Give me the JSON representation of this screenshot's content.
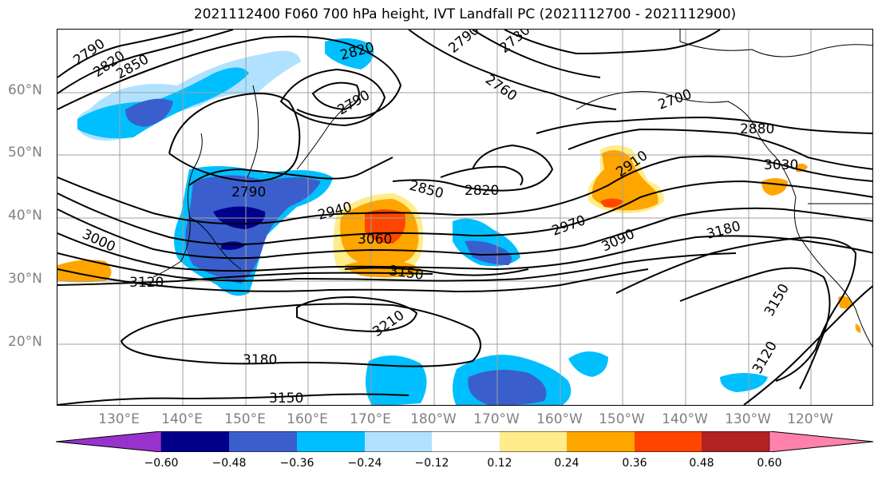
{
  "title": "2021112400 F060 700 hPa height, IVT Landfall PC (2021112700 - 2021112900)",
  "lat_labels": [
    "60°N",
    "50°N",
    "40°N",
    "30°N",
    "20°N"
  ],
  "lon_labels": [
    "130°E",
    "140°E",
    "150°E",
    "160°E",
    "170°E",
    "180°W",
    "170°W",
    "160°W",
    "150°W",
    "140°W",
    "130°W",
    "120°W"
  ],
  "contour_labels": [
    "2790",
    "2820",
    "2850",
    "2820",
    "2790",
    "2760",
    "2790",
    "2730",
    "2700",
    "2880",
    "3030",
    "2790",
    "2850",
    "2820",
    "2910",
    "2940",
    "2970",
    "3060",
    "3090",
    "3180",
    "3000",
    "3150",
    "3120",
    "3210",
    "3180",
    "3150",
    "3150",
    "3120"
  ],
  "colorbar": {
    "ticks": [
      "−0.60",
      "−0.48",
      "−0.36",
      "−0.24",
      "−0.12",
      "0.12",
      "0.24",
      "0.36",
      "0.48",
      "0.60"
    ],
    "colors": [
      "#9932cc",
      "#00008b",
      "#3a5fcd",
      "#00bfff",
      "#b0e2ff",
      "#ffffff",
      "#ffec8b",
      "#ffa500",
      "#ff4500",
      "#b22222",
      "#ff82ab"
    ]
  },
  "colors": {
    "line": "#000000",
    "grid": "#a0a0a0",
    "tick_text": "#808080"
  }
}
